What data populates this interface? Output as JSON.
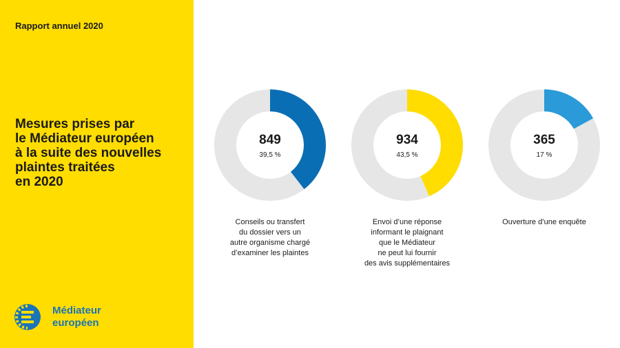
{
  "header": {
    "report_label": "Rapport annuel 2020"
  },
  "title": {
    "lines": [
      "Mesures prises par",
      "le Médiateur européen",
      "à la suite des nouvelles",
      "plaintes traitées",
      "en 2020"
    ]
  },
  "logo": {
    "lines": [
      "Médiateur",
      "européen"
    ]
  },
  "colors": {
    "sidebar": "#FFDD00",
    "track": "#E6E6E6",
    "blue": "#0A6EB4",
    "yellow": "#FFDD00",
    "light_blue": "#2A9AD8",
    "logo_blue": "#1b74b6"
  },
  "chart_data": {
    "type": "pie",
    "title": "Mesures prises par le Médiateur européen à la suite des nouvelles plaintes traitées en 2020",
    "items": [
      {
        "count": "849",
        "percent_label": "39,5 %",
        "percent": 39.5,
        "color": "#0A6EB4",
        "caption": [
          "Conseils ou transfert",
          "du dossier vers un",
          "autre organisme chargé",
          "d’examiner les plaintes"
        ]
      },
      {
        "count": "934",
        "percent_label": "43,5 %",
        "percent": 43.5,
        "color": "#FFDD00",
        "caption": [
          "Envoi d’une réponse",
          "informant le plaignant",
          "que le Médiateur",
          "ne peut lui fournir",
          "des avis supplémentaires"
        ]
      },
      {
        "count": "365",
        "percent_label": "17 %",
        "percent": 17,
        "color": "#2A9AD8",
        "caption": [
          "Ouverture d’une enquête"
        ]
      }
    ]
  }
}
